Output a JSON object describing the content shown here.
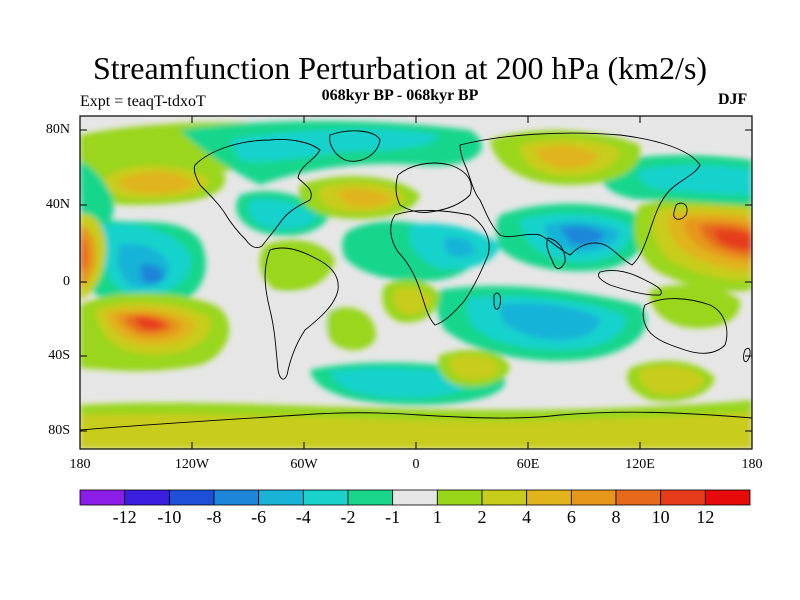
{
  "title": "Streamfunction Perturbation at 200 hPa (km2/s)",
  "left_label": "Expt = teaqT-tdxoT",
  "center_label": "068kyr BP - 068kyr BP",
  "right_label": "DJF",
  "lat_labels": [
    "80N",
    "40N",
    "0",
    "40S",
    "80S"
  ],
  "lon_labels": [
    "180",
    "120W",
    "60W",
    "0",
    "60E",
    "120E",
    "180"
  ],
  "colorbar": {
    "labels": [
      "-12",
      "-10",
      "-8",
      "-6",
      "-4",
      "-2",
      "-1",
      "1",
      "2",
      "4",
      "6",
      "8",
      "10",
      "12"
    ],
    "colors": [
      "#8a1ee6",
      "#3a1ee0",
      "#1e4fd8",
      "#1e86d8",
      "#19b3d8",
      "#19d2cc",
      "#19d68c",
      "#e6e6e6",
      "#99d61a",
      "#c8cc1a",
      "#e0b41a",
      "#e6961a",
      "#e66a1a",
      "#e63c1a",
      "#e60a0a"
    ]
  }
}
